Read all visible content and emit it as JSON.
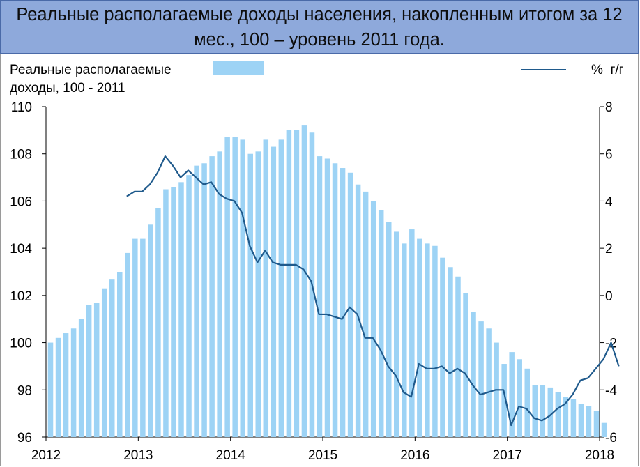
{
  "title": "Реальные располагаемые доходы населения, накопленным итогом за 12 мес., 100 – уровень 2011 года.",
  "chart_data": {
    "type": "bar+line",
    "legend": {
      "bar_label_line1": "Реальные располагаемые",
      "bar_label_line2": "доходы, 100 - 2011",
      "line_label": "%  г/г",
      "position": "top"
    },
    "colors": {
      "bar": "#9dd3f5",
      "line": "#1f5a8c"
    },
    "x_ticks": [
      "2012",
      "2013",
      "2014",
      "2015",
      "2016",
      "2017",
      "2018"
    ],
    "y_left": {
      "ticks": [
        "96",
        "98",
        "100",
        "102",
        "104",
        "106",
        "108",
        "110"
      ],
      "min": 96,
      "max": 110
    },
    "y_right": {
      "ticks": [
        "-6",
        "-4",
        "-2",
        "0",
        "2",
        "4",
        "6",
        "8"
      ],
      "min": -6,
      "max": 8
    },
    "x_start": "2012-01",
    "bar_series": {
      "name": "Реальные располагаемые доходы, 100 - 2011",
      "values": [
        100.0,
        100.2,
        100.4,
        100.6,
        101.0,
        101.6,
        101.7,
        102.3,
        102.7,
        103.0,
        103.8,
        104.4,
        104.4,
        105.0,
        105.7,
        106.5,
        106.6,
        106.8,
        107.1,
        107.5,
        107.6,
        107.9,
        108.1,
        108.7,
        108.7,
        108.6,
        108.0,
        108.1,
        108.6,
        108.3,
        108.6,
        109.0,
        109.0,
        109.2,
        108.9,
        107.9,
        107.8,
        107.6,
        107.4,
        107.2,
        106.7,
        106.4,
        106.0,
        105.6,
        105.1,
        104.7,
        104.2,
        104.8,
        104.4,
        104.2,
        104.1,
        103.6,
        103.2,
        102.8,
        102.1,
        101.3,
        100.9,
        100.6,
        100.0,
        99.1,
        99.6,
        99.3,
        98.9,
        98.2,
        98.2,
        98.1,
        97.9,
        97.7,
        97.6,
        97.4,
        97.3,
        97.1,
        96.6
      ]
    },
    "line_series": {
      "name": "%  г/г",
      "start_index": 10,
      "values": [
        4.2,
        4.4,
        4.4,
        4.7,
        5.2,
        5.9,
        5.5,
        5.0,
        5.3,
        5.0,
        4.7,
        4.8,
        4.3,
        4.1,
        4.0,
        3.5,
        2.1,
        1.4,
        1.9,
        1.4,
        1.3,
        1.3,
        1.3,
        1.1,
        0.6,
        -0.8,
        -0.8,
        -0.9,
        -1.0,
        -0.5,
        -0.8,
        -1.8,
        -1.8,
        -2.3,
        -3.0,
        -3.4,
        -4.1,
        -4.3,
        -2.9,
        -3.1,
        -3.1,
        -3.0,
        -3.3,
        -3.1,
        -3.3,
        -3.8,
        -4.2,
        -4.1,
        -4.0,
        -4.0,
        -5.5,
        -4.7,
        -4.8,
        -5.2,
        -5.3,
        -5.1,
        -4.8,
        -4.6,
        -4.2,
        -3.6,
        -3.5,
        -3.1,
        -2.7,
        -2.0,
        -3.0
      ]
    }
  }
}
